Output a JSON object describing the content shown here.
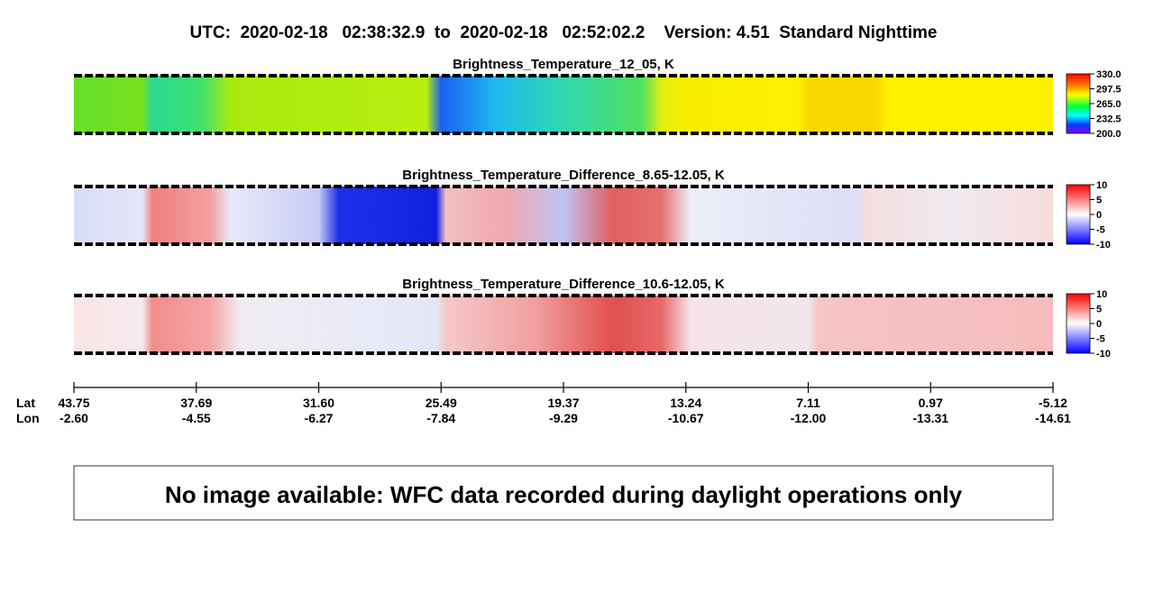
{
  "header": {
    "title": "UTC:  2020-02-18   02:38:32.9  to  2020-02-18   02:52:02.2    Version: 4.51  Standard Nighttime"
  },
  "panels": [
    {
      "title": "Brightness_Temperature_12_05, K",
      "colorbar_labels": [
        "330.0",
        "297.5",
        "265.0",
        "232.5",
        "200.0"
      ]
    },
    {
      "title": "Brightness_Temperature_Difference_8.65-12.05, K",
      "colorbar_labels": [
        "10",
        "5",
        "0",
        "-5",
        "-10"
      ]
    },
    {
      "title": "Brightness_Temperature_Difference_10.6-12.05, K",
      "colorbar_labels": [
        "10",
        "5",
        "0",
        "-5",
        "-10"
      ]
    }
  ],
  "axis": {
    "lat_label": "Lat",
    "lon_label": "Lon",
    "lat": [
      "43.75",
      "37.69",
      "31.60",
      "25.49",
      "19.37",
      "13.24",
      "7.11",
      "0.97",
      "-5.12"
    ],
    "lon": [
      "-2.60",
      "-4.55",
      "-6.27",
      "-7.84",
      "-9.29",
      "-10.67",
      "-12.00",
      "-13.31",
      "-14.61"
    ]
  },
  "message": "No image available: WFC data recorded during daylight operations only"
}
